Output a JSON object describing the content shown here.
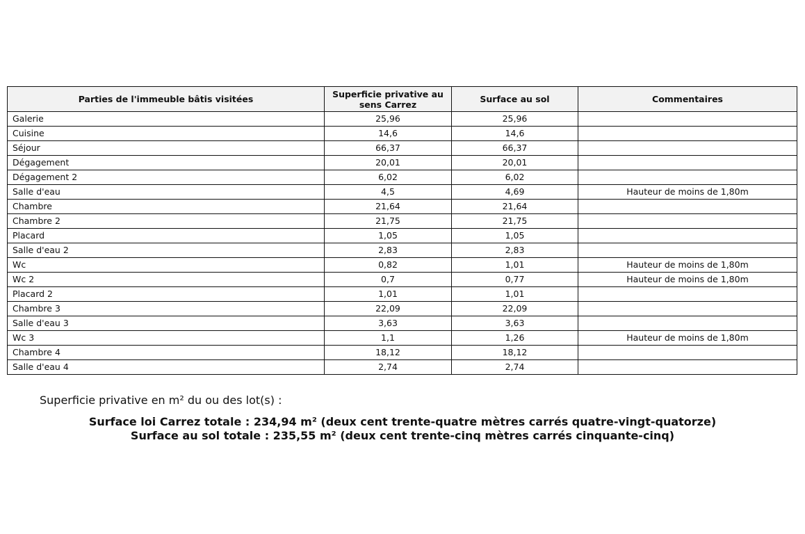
{
  "table": {
    "headers": [
      "Parties de l'immeuble bâtis visitées",
      "Superficie privative au sens Carrez",
      "Surface au sol",
      "Commentaires"
    ],
    "rows": [
      [
        "Galerie",
        "25,96",
        "25,96",
        ""
      ],
      [
        "Cuisine",
        "14,6",
        "14,6",
        ""
      ],
      [
        "Séjour",
        "66,37",
        "66,37",
        ""
      ],
      [
        "Dégagement",
        "20,01",
        "20,01",
        ""
      ],
      [
        "Dégagement 2",
        "6,02",
        "6,02",
        ""
      ],
      [
        "Salle d'eau",
        "4,5",
        "4,69",
        "Hauteur de moins de 1,80m"
      ],
      [
        "Chambre",
        "21,64",
        "21,64",
        ""
      ],
      [
        "Chambre 2",
        "21,75",
        "21,75",
        ""
      ],
      [
        "Placard",
        "1,05",
        "1,05",
        ""
      ],
      [
        "Salle d'eau 2",
        "2,83",
        "2,83",
        ""
      ],
      [
        "Wc",
        "0,82",
        "1,01",
        "Hauteur de moins de 1,80m"
      ],
      [
        "Wc 2",
        "0,7",
        "0,77",
        "Hauteur de moins de 1,80m"
      ],
      [
        "Placard 2",
        "1,01",
        "1,01",
        ""
      ],
      [
        "Chambre 3",
        "22,09",
        "22,09",
        ""
      ],
      [
        "Salle d'eau 3",
        "3,63",
        "3,63",
        ""
      ],
      [
        "Wc 3",
        "1,1",
        "1,26",
        "Hauteur de moins de 1,80m"
      ],
      [
        "Chambre 4",
        "18,12",
        "18,12",
        ""
      ],
      [
        "Salle d'eau 4",
        "2,74",
        "2,74",
        ""
      ]
    ]
  },
  "summary": {
    "intro": "Superficie privative en m² du ou des lot(s) :",
    "carrez_total": "Surface loi Carrez totale : 234,94 m² (deux cent trente-quatre mètres carrés quatre-vingt-quatorze)",
    "sol_total": "Surface au sol totale : 235,55 m² (deux cent trente-cinq mètres carrés cinquante-cinq)"
  }
}
